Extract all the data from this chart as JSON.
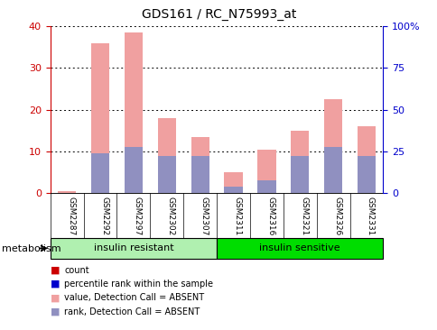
{
  "title": "GDS161 / RC_N75993_at",
  "categories": [
    "GSM2287",
    "GSM2292",
    "GSM2297",
    "GSM2302",
    "GSM2307",
    "GSM2311",
    "GSM2316",
    "GSM2321",
    "GSM2326",
    "GSM2331"
  ],
  "pink_bars": [
    0.5,
    36,
    38.5,
    18,
    13.5,
    5,
    10.5,
    15,
    22.5,
    16
  ],
  "blue_bars": [
    0,
    9.5,
    11,
    9,
    9,
    1.5,
    3,
    9,
    11,
    9
  ],
  "left_ylim": [
    0,
    40
  ],
  "right_ylim": [
    0,
    100
  ],
  "left_yticks": [
    0,
    10,
    20,
    30,
    40
  ],
  "right_yticks": [
    0,
    25,
    50,
    75,
    100
  ],
  "right_yticklabels": [
    "0",
    "25",
    "50",
    "75",
    "100%"
  ],
  "left_color": "#cc0000",
  "right_color": "#0000cc",
  "pink_color": "#f0a0a0",
  "blue_color": "#9090c0",
  "group1_label": "insulin resistant",
  "group2_label": "insulin sensitive",
  "group1_color": "#b0f0b0",
  "group2_color": "#00dd00",
  "group_label": "metabolism",
  "n_group1": 5,
  "n_group2": 5,
  "legend_items": [
    {
      "color": "#cc0000",
      "label": "count"
    },
    {
      "color": "#0000cc",
      "label": "percentile rank within the sample"
    },
    {
      "color": "#f0a0a0",
      "label": "value, Detection Call = ABSENT"
    },
    {
      "color": "#9090c0",
      "label": "rank, Detection Call = ABSENT"
    }
  ],
  "background_color": "#ffffff",
  "plot_bg_color": "#ffffff",
  "tick_area_color": "#cccccc"
}
